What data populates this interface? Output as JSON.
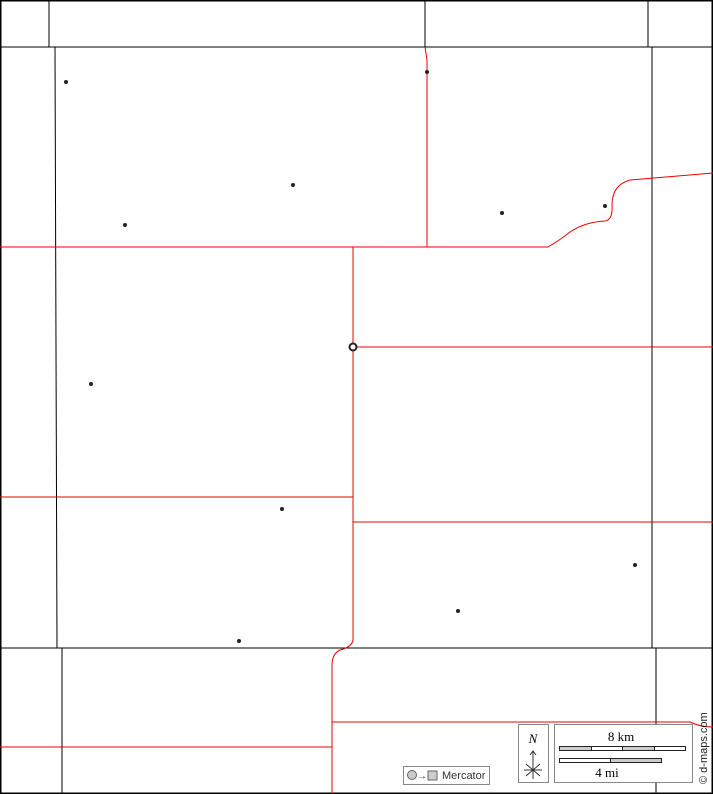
{
  "map": {
    "border_color": "#000000",
    "county_line_color": "#000000",
    "boundary_color": "#ff0000",
    "place_color": "#222222"
  },
  "legend": {
    "north_label": "N",
    "scale_km": "8 km",
    "scale_mi": "4 mi",
    "projection": "Mercator",
    "credit": "© d-maps.com"
  }
}
